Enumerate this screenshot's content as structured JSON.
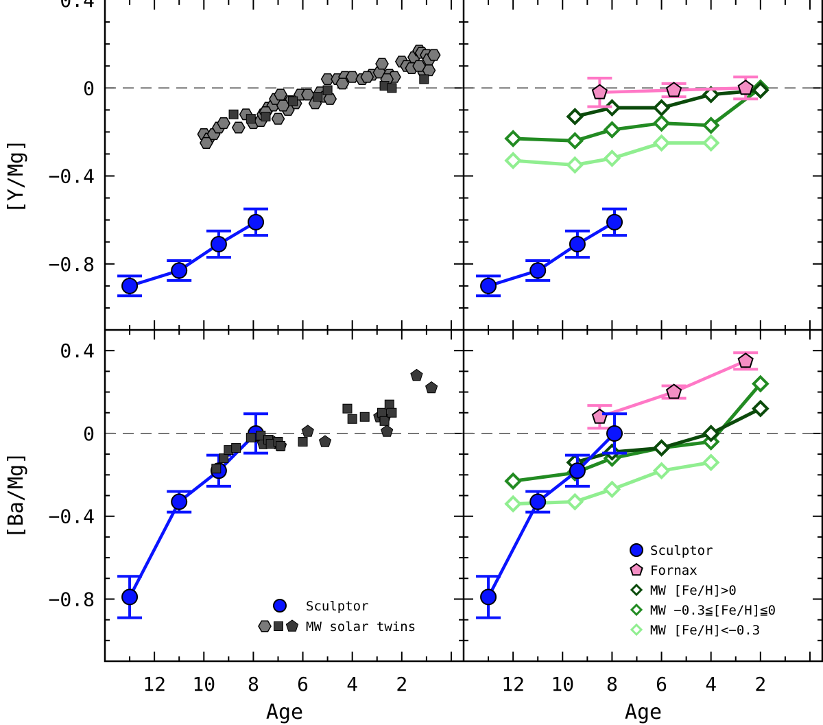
{
  "figure": {
    "xlabel": "Age",
    "ylabel_top": "[Y/Mg]",
    "ylabel_bottom": "[Ba/Mg]",
    "colors": {
      "sculptor": "#0a14ff",
      "fornax_line": "#ff78c6",
      "fornax_fill": "#f48ec4",
      "twin_hex": "#7a7a7a",
      "twin_dark": "#3a3a3a",
      "mw_high": "#0b4a0b",
      "mw_mid": "#228b22",
      "mw_low": "#90ee90",
      "zero_line": "#777777"
    }
  },
  "chart_data": [
    {
      "id": "top-left",
      "type": "scatter",
      "xlim": [
        14.0,
        -0.5
      ],
      "ylim": [
        -1.1,
        0.4
      ],
      "xticks": [
        "12",
        "10",
        "8",
        "6",
        "4",
        "2"
      ],
      "yticks": [
        "0.4",
        "0",
        "−0.4",
        "−0.8"
      ],
      "zero_line": true,
      "series": [
        {
          "kind": "sculptor",
          "x": [
            13.0,
            11.0,
            9.4,
            7.9
          ],
          "y": [
            -0.9,
            -0.83,
            -0.71,
            -0.61
          ],
          "err": [
            0.045,
            0.045,
            0.06,
            0.06
          ]
        },
        {
          "kind": "twins-hex",
          "points": [
            [
              10.0,
              -0.21
            ],
            [
              9.8,
              -0.23
            ],
            [
              9.9,
              -0.25
            ],
            [
              9.6,
              -0.21
            ],
            [
              9.4,
              -0.18
            ],
            [
              9.2,
              -0.16
            ],
            [
              8.0,
              -0.16
            ],
            [
              7.7,
              -0.15
            ],
            [
              7.6,
              -0.12
            ],
            [
              8.3,
              -0.12
            ],
            [
              7.4,
              -0.09
            ],
            [
              7.2,
              -0.08
            ],
            [
              7.1,
              -0.05
            ],
            [
              6.9,
              -0.03
            ],
            [
              7.0,
              -0.14
            ],
            [
              6.5,
              -0.06
            ],
            [
              6.3,
              -0.07
            ],
            [
              6.1,
              -0.03
            ],
            [
              5.8,
              -0.03
            ],
            [
              5.5,
              -0.07
            ],
            [
              5.3,
              -0.02
            ],
            [
              5.1,
              -0.04
            ],
            [
              4.9,
              -0.05
            ],
            [
              6.6,
              -0.1
            ],
            [
              8.6,
              -0.18
            ],
            [
              7.5,
              -0.11
            ],
            [
              6.8,
              -0.08
            ],
            [
              5.0,
              0.04
            ],
            [
              4.6,
              0.04
            ],
            [
              4.3,
              0.05
            ],
            [
              4.0,
              0.05
            ],
            [
              3.6,
              0.04
            ],
            [
              3.2,
              0.06
            ],
            [
              2.9,
              0.07
            ],
            [
              2.8,
              0.11
            ],
            [
              2.5,
              0.06
            ],
            [
              2.3,
              0.05
            ],
            [
              2.0,
              0.12
            ],
            [
              1.8,
              0.1
            ],
            [
              1.6,
              0.09
            ],
            [
              1.5,
              0.14
            ],
            [
              1.3,
              0.17
            ],
            [
              1.2,
              0.16
            ],
            [
              1.0,
              0.15
            ],
            [
              0.9,
              0.13
            ],
            [
              0.7,
              0.15
            ],
            [
              1.1,
              0.07
            ],
            [
              1.3,
              0.1
            ],
            [
              0.9,
              0.08
            ],
            [
              2.6,
              0.04
            ],
            [
              3.4,
              0.05
            ],
            [
              4.4,
              0.02
            ]
          ]
        },
        {
          "kind": "twins-square",
          "points": [
            [
              8.8,
              -0.12
            ],
            [
              8.1,
              -0.14
            ],
            [
              7.5,
              -0.13
            ],
            [
              6.4,
              -0.06
            ],
            [
              5.4,
              -0.04
            ],
            [
              5.0,
              -0.01
            ],
            [
              2.7,
              0.01
            ],
            [
              2.4,
              0.0
            ],
            [
              1.1,
              0.04
            ]
          ]
        }
      ]
    },
    {
      "id": "top-right",
      "type": "line",
      "xlim": [
        14.0,
        -0.5
      ],
      "ylim": [
        -1.1,
        0.4
      ],
      "xticks": [
        "12",
        "10",
        "8",
        "6",
        "4",
        "2"
      ],
      "yticks": [
        "0.4",
        "0",
        "−0.4",
        "−0.8"
      ],
      "zero_line": true,
      "series": [
        {
          "kind": "sculptor",
          "x": [
            13.0,
            11.0,
            9.4,
            7.9
          ],
          "y": [
            -0.9,
            -0.83,
            -0.71,
            -0.61
          ],
          "err": [
            0.045,
            0.045,
            0.06,
            0.06
          ]
        },
        {
          "kind": "mw-low",
          "x": [
            12.0,
            9.5,
            8.0,
            6.0,
            4.0
          ],
          "y": [
            -0.33,
            -0.35,
            -0.32,
            -0.25,
            -0.25
          ]
        },
        {
          "kind": "mw-mid",
          "x": [
            12.0,
            9.5,
            8.0,
            6.0,
            4.0,
            2.0
          ],
          "y": [
            -0.23,
            -0.24,
            -0.19,
            -0.16,
            -0.17,
            0.0
          ]
        },
        {
          "kind": "mw-high",
          "x": [
            9.5,
            8.0,
            6.0,
            4.0,
            2.0
          ],
          "y": [
            -0.13,
            -0.09,
            -0.09,
            -0.03,
            -0.01
          ]
        },
        {
          "kind": "fornax",
          "x": [
            8.5,
            5.5,
            2.6
          ],
          "y": [
            -0.02,
            -0.01,
            0.0
          ],
          "err": [
            0.065,
            0.03,
            0.05
          ]
        }
      ]
    },
    {
      "id": "bottom-left",
      "type": "scatter",
      "xlim": [
        14.0,
        -0.5
      ],
      "ylim": [
        -1.1,
        0.5
      ],
      "xticks": [
        "12",
        "10",
        "8",
        "6",
        "4",
        "2"
      ],
      "yticks": [
        "0.4",
        "0",
        "−0.4",
        "−0.8"
      ],
      "zero_line": true,
      "series": [
        {
          "kind": "sculptor",
          "x": [
            13.0,
            11.0,
            9.4,
            7.9
          ],
          "y": [
            -0.79,
            -0.33,
            -0.18,
            0.0
          ],
          "err": [
            0.1,
            0.05,
            0.075,
            0.095
          ]
        },
        {
          "kind": "twins-pent",
          "points": [
            [
              5.8,
              0.01
            ],
            [
              5.1,
              -0.04
            ],
            [
              2.9,
              0.08
            ],
            [
              2.7,
              0.07
            ],
            [
              2.6,
              0.01
            ],
            [
              1.4,
              0.28
            ],
            [
              0.8,
              0.22
            ],
            [
              7.2,
              -0.04
            ],
            [
              7.0,
              -0.05
            ],
            [
              6.9,
              -0.06
            ],
            [
              7.6,
              -0.05
            ]
          ]
        },
        {
          "kind": "twins-square",
          "points": [
            [
              9.5,
              -0.17
            ],
            [
              9.2,
              -0.12
            ],
            [
              9.0,
              -0.08
            ],
            [
              8.7,
              -0.07
            ],
            [
              8.1,
              -0.02
            ],
            [
              7.7,
              -0.01
            ],
            [
              7.4,
              -0.03
            ],
            [
              7.3,
              -0.05
            ],
            [
              7.0,
              -0.04
            ],
            [
              6.9,
              -0.06
            ],
            [
              6.0,
              -0.04
            ],
            [
              4.2,
              0.12
            ],
            [
              4.0,
              0.07
            ],
            [
              3.5,
              0.08
            ],
            [
              2.8,
              0.1
            ],
            [
              2.7,
              0.06
            ],
            [
              2.5,
              0.14
            ],
            [
              2.4,
              0.1
            ]
          ]
        }
      ],
      "legend": [
        {
          "marker": "sculptor",
          "label": "Sculptor"
        },
        {
          "marker": "twins-group",
          "label": "MW solar twins"
        }
      ]
    },
    {
      "id": "bottom-right",
      "type": "line",
      "xlim": [
        14.0,
        -0.5
      ],
      "ylim": [
        -1.1,
        0.5
      ],
      "xticks": [
        "12",
        "10",
        "8",
        "6",
        "4",
        "2"
      ],
      "yticks": [
        "0.4",
        "0",
        "−0.4",
        "−0.8"
      ],
      "zero_line": true,
      "series": [
        {
          "kind": "mw-low",
          "x": [
            12.0,
            9.5,
            8.0,
            6.0,
            4.0
          ],
          "y": [
            -0.34,
            -0.33,
            -0.27,
            -0.18,
            -0.14
          ]
        },
        {
          "kind": "mw-mid",
          "x": [
            12.0,
            9.5,
            8.0,
            6.0,
            4.0,
            2.0
          ],
          "y": [
            -0.23,
            -0.19,
            -0.12,
            -0.07,
            -0.04,
            0.24
          ]
        },
        {
          "kind": "mw-high",
          "x": [
            9.5,
            8.0,
            6.0,
            4.0,
            2.0
          ],
          "y": [
            -0.14,
            -0.09,
            -0.07,
            0.0,
            0.12
          ]
        },
        {
          "kind": "fornax",
          "x": [
            8.5,
            5.5,
            2.6
          ],
          "y": [
            0.08,
            0.2,
            0.35
          ],
          "err": [
            0.055,
            0.03,
            0.04
          ]
        },
        {
          "kind": "sculptor",
          "x": [
            13.0,
            11.0,
            9.4,
            7.9
          ],
          "y": [
            -0.79,
            -0.33,
            -0.18,
            0.0
          ],
          "err": [
            0.1,
            0.05,
            0.075,
            0.095
          ]
        }
      ],
      "legend": [
        {
          "marker": "sculptor",
          "label": "Sculptor"
        },
        {
          "marker": "fornax",
          "label": "Fornax"
        },
        {
          "marker": "mw-high",
          "label": "MW [Fe/H]>0"
        },
        {
          "marker": "mw-mid",
          "label": "MW −0.3≦[Fe/H]≦0"
        },
        {
          "marker": "mw-low",
          "label": "MW [Fe/H]<−0.3"
        }
      ]
    }
  ]
}
